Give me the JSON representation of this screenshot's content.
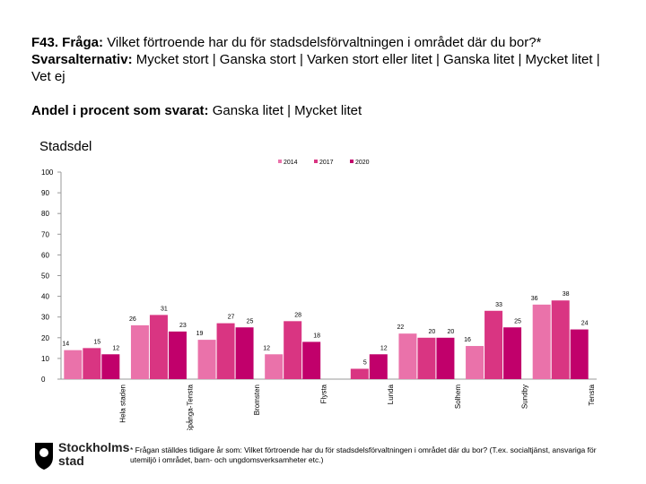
{
  "header": {
    "question_label": "F43. Fråga:",
    "question": "Vilket förtroende har du för stadsdelsförvaltningen i området där du bor?*",
    "options_label": "Svarsalternativ:",
    "options": "Mycket stort | Ganska stort | Varken stort eller litet | Ganska litet | Mycket litet | Vet ej",
    "share_label": "Andel i procent som svarat:",
    "share": "Ganska litet | Mycket litet"
  },
  "chart_data": {
    "type": "bar",
    "title": "Stadsdel",
    "categories": [
      "Hela staden",
      "Spånga-Tensta",
      "Bromsten",
      "Flysta",
      "Lunda",
      "Solhem",
      "Sundby",
      "Tensta"
    ],
    "series": [
      {
        "name": "2014",
        "color": "#ea72aa",
        "values": [
          14,
          26,
          19,
          12,
          null,
          22,
          16,
          36
        ]
      },
      {
        "name": "2017",
        "color": "#d93582",
        "values": [
          15,
          31,
          27,
          28,
          5,
          20,
          33,
          38
        ]
      },
      {
        "name": "2020",
        "color": "#c1006b",
        "values": [
          12,
          23,
          25,
          18,
          12,
          20,
          25,
          24
        ]
      }
    ],
    "ylim": [
      0,
      100
    ],
    "yticks": [
      0,
      10,
      20,
      30,
      40,
      50,
      60,
      70,
      80,
      90,
      100
    ],
    "legend": "top"
  },
  "footnote": "* Frågan ställdes tidigare år som: Vilket förtroende har du för stadsdelsförvaltningen i området där du bor? (T.ex. socialtjänst, ansvariga för utemiljö i området, barn- och ungdomsverksamheter etc.)",
  "logo_text": "Stockholms stad"
}
